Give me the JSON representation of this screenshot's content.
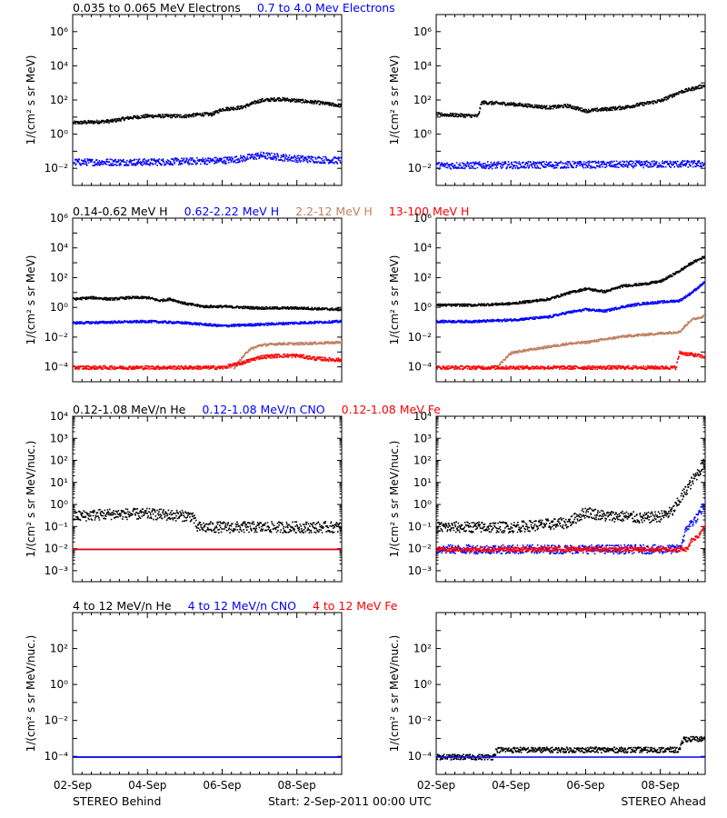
{
  "footer": {
    "left": "STEREO Behind",
    "center": "Start:  2-Sep-2011 00:00 UTC",
    "right": "STEREO Ahead"
  },
  "chart_data": [
    {
      "type": "scatter",
      "row": 0,
      "title_items": [
        {
          "text": "0.035 to 0.065 MeV Electrons",
          "color": "#000000"
        },
        {
          "text": "0.7 to 4.0 Mev Electrons",
          "color": "#0000ff"
        }
      ],
      "ylabel": "1/(cm² s sr MeV)",
      "ylog": true,
      "ylim_exp": [
        -3,
        7
      ],
      "yticks": [
        {
          "exp": -2,
          "label": "10⁻²"
        },
        {
          "exp": 0,
          "label": "10⁰"
        },
        {
          "exp": 2,
          "label": "10²"
        },
        {
          "exp": 4,
          "label": "10⁴"
        },
        {
          "exp": 6,
          "label": "10⁶"
        }
      ],
      "xlim_days": [
        2,
        9.2
      ],
      "panels": [
        {
          "spacecraft": "STEREO Behind",
          "series": [
            {
              "name": "0.035 to 0.065 MeV Electrons",
              "color": "#000000",
              "noise": 0.1,
              "x": [
                2,
                3,
                3.5,
                4,
                4.5,
                5,
                5.4,
                5.7,
                6,
                6.5,
                7,
                7.5,
                8,
                8.5,
                9.2
              ],
              "log10y": [
                0.7,
                0.8,
                1.0,
                1.1,
                1.1,
                1.1,
                1.2,
                1.2,
                1.5,
                1.6,
                2.0,
                2.1,
                2.0,
                1.9,
                1.7
              ]
            },
            {
              "name": "0.7 to 4.0 Mev Electrons",
              "color": "#0000ff",
              "noise": 0.2,
              "x": [
                2,
                4,
                6,
                6.5,
                7,
                7.5,
                8,
                9.2
              ],
              "log10y": [
                -1.6,
                -1.6,
                -1.5,
                -1.4,
                -1.2,
                -1.3,
                -1.4,
                -1.5
              ]
            }
          ]
        },
        {
          "spacecraft": "STEREO Ahead",
          "series": [
            {
              "name": "0.035 to 0.065 MeV Electrons",
              "color": "#000000",
              "noise": 0.1,
              "x": [
                2,
                3.1,
                3.2,
                4,
                5,
                5.5,
                6,
                6.5,
                7,
                7.5,
                8,
                8.5,
                9.2
              ],
              "log10y": [
                1.2,
                1.1,
                1.9,
                1.8,
                1.6,
                1.7,
                1.4,
                1.5,
                1.6,
                1.8,
                2.0,
                2.5,
                2.9
              ]
            },
            {
              "name": "0.7 to 4.0 Mev Electrons",
              "color": "#0000ff",
              "noise": 0.2,
              "x": [
                2,
                9.2
              ],
              "log10y": [
                -1.8,
                -1.7
              ]
            }
          ]
        }
      ]
    },
    {
      "type": "scatter",
      "row": 1,
      "title_items": [
        {
          "text": "0.14-0.62 MeV H",
          "color": "#000000"
        },
        {
          "text": "0.62-2.22 MeV H",
          "color": "#0000ff"
        },
        {
          "text": "2.2-12 MeV H",
          "color": "#c08060"
        },
        {
          "text": "13-100 MeV H",
          "color": "#ff0000"
        }
      ],
      "ylabel": "1/(cm² s sr MeV)",
      "ylog": true,
      "ylim_exp": [
        -5,
        6
      ],
      "yticks": [
        {
          "exp": -4,
          "label": "10⁻⁴"
        },
        {
          "exp": -2,
          "label": "10⁻²"
        },
        {
          "exp": 0,
          "label": "10⁰"
        },
        {
          "exp": 2,
          "label": "10²"
        },
        {
          "exp": 4,
          "label": "10⁴"
        },
        {
          "exp": 6,
          "label": "10⁶"
        }
      ],
      "xlim_days": [
        2,
        9.2
      ],
      "panels": [
        {
          "spacecraft": "STEREO Behind",
          "series": [
            {
              "name": "0.14-0.62 MeV H",
              "color": "#000000",
              "noise": 0.08,
              "x": [
                2,
                2.5,
                3,
                3.5,
                4,
                4.3,
                4.6,
                5,
                5.5,
                6,
                7,
                8,
                9.2
              ],
              "log10y": [
                0.6,
                0.7,
                0.6,
                0.7,
                0.7,
                0.5,
                0.6,
                0.3,
                0.1,
                0.1,
                0.0,
                0.0,
                -0.1
              ]
            },
            {
              "name": "0.62-2.22 MeV H",
              "color": "#0000ff",
              "noise": 0.08,
              "x": [
                2,
                4,
                5,
                6,
                7,
                8,
                9.2
              ],
              "log10y": [
                -1.0,
                -0.9,
                -1.0,
                -1.2,
                -1.1,
                -1.0,
                -0.9
              ]
            },
            {
              "name": "2.2-12 MeV H",
              "color": "#c08060",
              "noise": 0.08,
              "x": [
                6.3,
                6.7,
                7,
                7.5,
                8,
                9.2
              ],
              "log10y": [
                -4.0,
                -2.8,
                -2.5,
                -2.4,
                -2.4,
                -2.3
              ]
            },
            {
              "name": "13-100 MeV H",
              "color": "#ff0000",
              "noise": 0.12,
              "x": [
                2,
                5.5,
                6,
                6.5,
                7,
                7.5,
                8,
                8.5,
                9.2
              ],
              "log10y": [
                -4.0,
                -4.0,
                -4.0,
                -3.7,
                -3.3,
                -3.2,
                -3.2,
                -3.4,
                -3.5
              ]
            }
          ]
        },
        {
          "spacecraft": "STEREO Ahead",
          "series": [
            {
              "name": "0.14-0.62 MeV H",
              "color": "#000000",
              "noise": 0.08,
              "x": [
                2,
                3,
                4,
                5,
                5.5,
                6,
                6.5,
                7,
                7.5,
                8,
                8.5,
                8.8,
                9.2
              ],
              "log10y": [
                0.2,
                0.2,
                0.3,
                0.6,
                1.0,
                1.3,
                1.1,
                1.5,
                1.6,
                1.8,
                2.5,
                3.0,
                3.5
              ]
            },
            {
              "name": "0.62-2.22 MeV H",
              "color": "#0000ff",
              "noise": 0.08,
              "x": [
                2,
                3,
                4,
                5,
                5.5,
                6,
                6.5,
                7,
                7.5,
                8,
                8.5,
                8.8,
                9.2
              ],
              "log10y": [
                -0.9,
                -0.9,
                -0.8,
                -0.6,
                -0.3,
                -0.1,
                -0.2,
                0.1,
                0.3,
                0.4,
                0.5,
                1.0,
                1.8
              ]
            },
            {
              "name": "2.2-12 MeV H",
              "color": "#c08060",
              "noise": 0.08,
              "x": [
                3.6,
                4,
                5,
                5.5,
                6,
                6.5,
                7,
                7.5,
                8,
                8.5,
                8.8,
                9.2
              ],
              "log10y": [
                -4.0,
                -3.0,
                -2.6,
                -2.4,
                -2.3,
                -2.1,
                -1.9,
                -1.8,
                -1.7,
                -1.6,
                -0.8,
                -0.5
              ]
            },
            {
              "name": "13-100 MeV H",
              "color": "#ff0000",
              "noise": 0.12,
              "x": [
                2,
                5,
                6,
                7,
                8,
                8.4,
                8.5,
                9,
                9.2
              ],
              "log10y": [
                -4.0,
                -4.0,
                -4.0,
                -4.0,
                -4.0,
                -4.0,
                -3.0,
                -3.2,
                -3.3
              ]
            }
          ]
        }
      ]
    },
    {
      "type": "scatter",
      "row": 2,
      "title_items": [
        {
          "text": "0.12-1.08 MeV/n He",
          "color": "#000000"
        },
        {
          "text": "0.12-1.08 MeV/n CNO",
          "color": "#0000ff"
        },
        {
          "text": "0.12-1.08 MeV Fe",
          "color": "#ff0000"
        }
      ],
      "ylabel": "1/(cm² s sr MeV/nuc.)",
      "ylog": true,
      "ylim_exp": [
        -3.5,
        4
      ],
      "yticks": [
        {
          "exp": -3,
          "label": "10⁻³"
        },
        {
          "exp": -2,
          "label": "10⁻²"
        },
        {
          "exp": -1,
          "label": "10⁻¹"
        },
        {
          "exp": 0,
          "label": "10⁰"
        },
        {
          "exp": 1,
          "label": "10¹"
        },
        {
          "exp": 2,
          "label": "10²"
        },
        {
          "exp": 3,
          "label": "10³"
        },
        {
          "exp": 4,
          "label": "10⁴"
        }
      ],
      "xlim_days": [
        2,
        9.2
      ],
      "panels": [
        {
          "spacecraft": "STEREO Behind",
          "series": [
            {
              "name": "0.12-1.08 MeV/n He",
              "color": "#000000",
              "noise": 0.25,
              "x": [
                2,
                3,
                4,
                5.2,
                5.3,
                9.2
              ],
              "log10y": [
                -0.5,
                -0.4,
                -0.4,
                -0.5,
                -1.0,
                -1.0
              ]
            },
            {
              "name": "0.12-1.08 MeV/n CNO",
              "color": "#0000ff",
              "noise": 0.0,
              "x": [
                2,
                9.2
              ],
              "log10y": [
                -2.0,
                -2.0
              ]
            },
            {
              "name": "0.12-1.08 MeV Fe",
              "color": "#ff0000",
              "noise": 0.0,
              "x": [
                2,
                9.2
              ],
              "log10y": [
                -2.0,
                -2.0
              ]
            }
          ]
        },
        {
          "spacecraft": "STEREO Ahead",
          "series": [
            {
              "name": "0.12-1.08 MeV/n He",
              "color": "#000000",
              "noise": 0.25,
              "x": [
                2,
                4,
                5.5,
                6,
                6.5,
                7,
                7.5,
                8,
                8.3,
                8.6,
                9,
                9.2
              ],
              "log10y": [
                -1.0,
                -1.0,
                -0.8,
                -0.3,
                -0.5,
                -0.5,
                -0.6,
                -0.5,
                -0.3,
                0.5,
                1.5,
                2.0
              ]
            },
            {
              "name": "0.12-1.08 MeV/n CNO",
              "color": "#0000ff",
              "noise": 0.2,
              "x": [
                2,
                8.5,
                8.7,
                9,
                9.2
              ],
              "log10y": [
                -2.0,
                -2.0,
                -1.0,
                -0.5,
                0.2
              ]
            },
            {
              "name": "0.12-1.08 MeV Fe",
              "color": "#ff0000",
              "noise": 0.1,
              "x": [
                2,
                8.7,
                8.8,
                9,
                9.2
              ],
              "log10y": [
                -2.0,
                -2.0,
                -1.6,
                -1.4,
                -0.8
              ]
            }
          ]
        }
      ]
    },
    {
      "type": "scatter",
      "row": 3,
      "title_items": [
        {
          "text": "4 to 12 MeV/n He",
          "color": "#000000"
        },
        {
          "text": "4 to 12 MeV/n CNO",
          "color": "#0000ff"
        },
        {
          "text": "4 to 12 MeV Fe",
          "color": "#ff0000"
        }
      ],
      "ylabel": "1/(cm² s sr MeV/nuc.)",
      "ylog": true,
      "ylim_exp": [
        -5,
        4
      ],
      "yticks": [
        {
          "exp": -4,
          "label": "10⁻⁴"
        },
        {
          "exp": -2,
          "label": "10⁻²"
        },
        {
          "exp": 0,
          "label": "10⁰"
        },
        {
          "exp": 2,
          "label": "10²"
        }
      ],
      "xlim_days": [
        2,
        9.2
      ],
      "xticks": [
        {
          "day": 2,
          "label": "02-Sep"
        },
        {
          "day": 4,
          "label": "04-Sep"
        },
        {
          "day": 6,
          "label": "06-Sep"
        },
        {
          "day": 8,
          "label": "08-Sep"
        }
      ],
      "panels": [
        {
          "spacecraft": "STEREO Behind",
          "series": [
            {
              "name": "4 to 12 MeV/n He",
              "color": "#000000",
              "noise": 0.0,
              "x": [
                2,
                9.2
              ],
              "log10y": [
                -4.0,
                -4.0
              ]
            },
            {
              "name": "4 to 12 MeV/n CNO",
              "color": "#0000ff",
              "noise": 0.0,
              "x": [
                2,
                9.2
              ],
              "log10y": [
                -4.0,
                -4.0
              ]
            }
          ]
        },
        {
          "spacecraft": "STEREO Ahead",
          "series": [
            {
              "name": "4 to 12 MeV/n He",
              "color": "#000000",
              "noise": 0.15,
              "x": [
                2,
                3.5,
                3.6,
                8.5,
                8.6,
                9.2
              ],
              "log10y": [
                -4.0,
                -4.0,
                -3.6,
                -3.6,
                -3.0,
                -3.0
              ]
            },
            {
              "name": "4 to 12 MeV/n CNO",
              "color": "#0000ff",
              "noise": 0.0,
              "x": [
                2,
                9.2
              ],
              "log10y": [
                -4.0,
                -4.0
              ]
            }
          ]
        }
      ]
    }
  ]
}
